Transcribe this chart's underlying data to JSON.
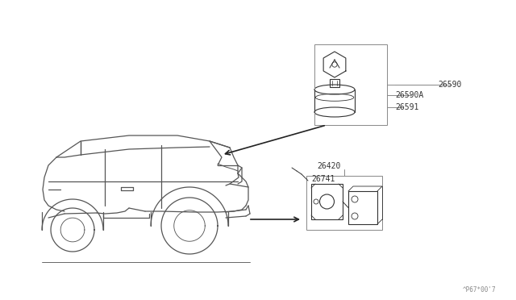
{
  "bg_color": "#ffffff",
  "line_color": "#999999",
  "dark_line_color": "#333333",
  "text_color": "#333333",
  "fig_width": 6.4,
  "fig_height": 3.72,
  "watermark": "^P67*00'7",
  "car_color": "#555555",
  "component_color": "#444444",
  "box_color": "#888888"
}
